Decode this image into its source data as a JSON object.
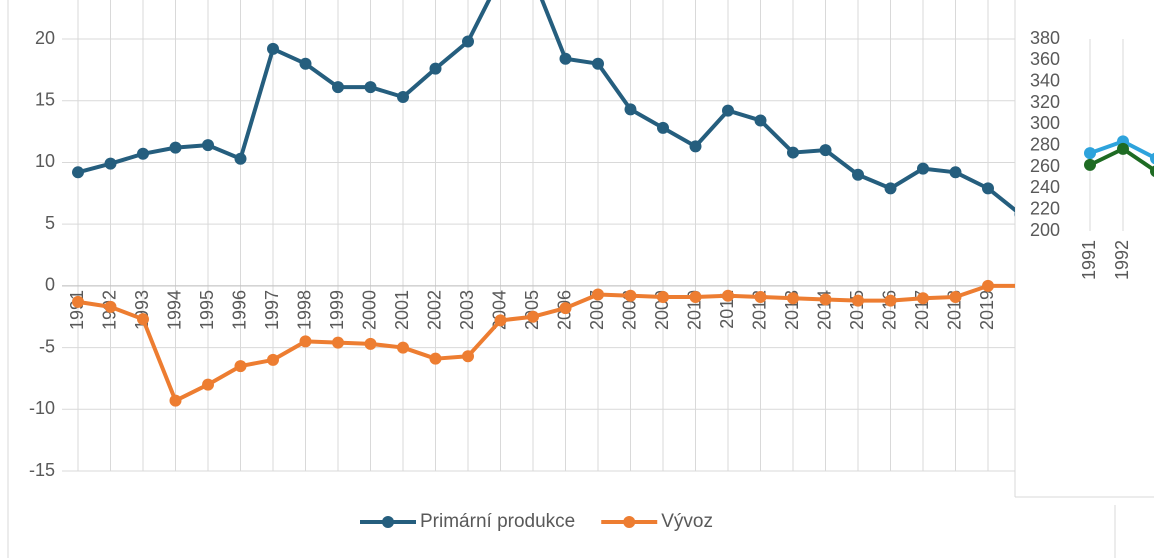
{
  "chart_data": [
    {
      "type": "line",
      "categories": [
        "1991",
        "1992",
        "1993",
        "1994",
        "1995",
        "1996",
        "1997",
        "1998",
        "1999",
        "2000",
        "2001",
        "2002",
        "2003",
        "2004",
        "2005",
        "2006",
        "2007",
        "2008",
        "2009",
        "2010",
        "2011",
        "2012",
        "2013",
        "2014",
        "2015",
        "2016",
        "2017",
        "2018",
        "2019",
        null
      ],
      "series": [
        {
          "name": "Primární produkce",
          "color": "#255e7e",
          "values": [
            9.2,
            9.9,
            10.7,
            11.2,
            11.4,
            10.3,
            19.2,
            18.0,
            16.1,
            16.1,
            15.3,
            17.6,
            19.8,
            25,
            25,
            18.4,
            18.0,
            14.3,
            12.8,
            11.3,
            14.2,
            13.4,
            10.8,
            11.0,
            9.0,
            7.9,
            9.5,
            9.2,
            7.9,
            5.8
          ]
        },
        {
          "name": "Vývoz",
          "color": "#ed7d31",
          "values": [
            -1.3,
            -1.7,
            -2.7,
            -9.3,
            -8.0,
            -6.5,
            -6.0,
            -4.5,
            -4.6,
            -4.7,
            -5.0,
            -5.9,
            -5.7,
            -2.8,
            -2.5,
            -1.8,
            -0.7,
            -0.8,
            -0.9,
            -0.9,
            -0.8,
            -0.9,
            -1.0,
            -1.1,
            -1.2,
            -1.2,
            -1.0,
            -0.9,
            0,
            0
          ]
        }
      ],
      "ylim": [
        -15,
        25
      ],
      "yticks": [
        -15,
        -10,
        -5,
        0,
        5,
        10,
        15,
        20
      ],
      "grid": "both",
      "legend": "bottom"
    },
    {
      "type": "line",
      "categories": [
        "1991",
        "1992",
        null
      ],
      "series": [
        {
          "color": "#2ea3dc",
          "values": [
            273,
            284,
            268
          ]
        },
        {
          "color": "#1e6b23",
          "values": [
            262,
            277,
            256
          ]
        }
      ],
      "ylim": [
        200,
        380
      ],
      "yticks": [
        200,
        220,
        240,
        260,
        280,
        300,
        320,
        340,
        360,
        380
      ],
      "grid": "x"
    }
  ]
}
